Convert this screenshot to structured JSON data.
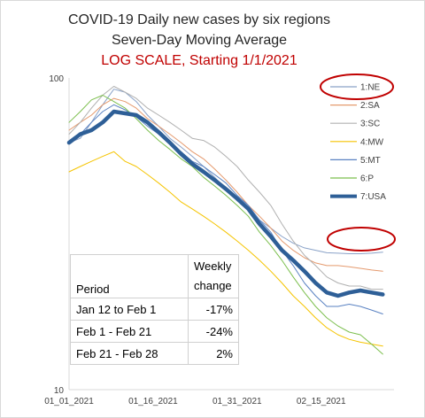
{
  "chart_data": {
    "type": "line",
    "title": "COVID-19 Daily new cases by six regions",
    "subtitle": "Seven-Day Moving Average",
    "subtitle2": "LOG SCALE, Starting 1/1/2021",
    "log_scale": true,
    "ylim": [
      10,
      100
    ],
    "y_ticks": [
      "100",
      "10"
    ],
    "x_ticks": [
      "01_01_2021",
      "01_16_2021",
      "01_31_2021",
      "02_15_2021"
    ],
    "x_tick_days": [
      0,
      15,
      30,
      45
    ],
    "xlim_days": [
      0,
      58
    ],
    "legend_position": "right",
    "colors": {
      "1:NE": "#8aa2c8",
      "2:SA": "#e59a6e",
      "3:SC": "#b0b0b0",
      "4:MW": "#f5c400",
      "5:MT": "#5a82c2",
      "6:P": "#7cbf4e",
      "7:USA": "#2e5f97",
      "highlight": "#c00000"
    },
    "series": [
      {
        "name": "1:NE",
        "color": "#8aa2c8",
        "width": 1,
        "values": [
          [
            0,
            62
          ],
          [
            2,
            64
          ],
          [
            4,
            72
          ],
          [
            6,
            82
          ],
          [
            8,
            92
          ],
          [
            10,
            90
          ],
          [
            12,
            84
          ],
          [
            14,
            76
          ],
          [
            16,
            70
          ],
          [
            18,
            64
          ],
          [
            20,
            60
          ],
          [
            22,
            56
          ],
          [
            24,
            52
          ],
          [
            26,
            48
          ],
          [
            28,
            44
          ],
          [
            30,
            41
          ],
          [
            32,
            38
          ],
          [
            34,
            35
          ],
          [
            36,
            33
          ],
          [
            38,
            31
          ],
          [
            40,
            29.5
          ],
          [
            42,
            28.5
          ],
          [
            44,
            28
          ],
          [
            46,
            27.5
          ],
          [
            48,
            27.4
          ],
          [
            50,
            27.3
          ],
          [
            52,
            27.3
          ],
          [
            54,
            27.4
          ],
          [
            56,
            27.6
          ]
        ]
      },
      {
        "name": "2:SA",
        "color": "#e59a6e",
        "width": 1,
        "values": [
          [
            0,
            68
          ],
          [
            2,
            72
          ],
          [
            4,
            76
          ],
          [
            6,
            82
          ],
          [
            8,
            86
          ],
          [
            10,
            84
          ],
          [
            12,
            80
          ],
          [
            14,
            74
          ],
          [
            16,
            70
          ],
          [
            18,
            66
          ],
          [
            20,
            62
          ],
          [
            22,
            58
          ],
          [
            24,
            55
          ],
          [
            26,
            51
          ],
          [
            28,
            47
          ],
          [
            30,
            43
          ],
          [
            32,
            39
          ],
          [
            34,
            36
          ],
          [
            36,
            33
          ],
          [
            38,
            30
          ],
          [
            40,
            28
          ],
          [
            42,
            26.5
          ],
          [
            44,
            25.5
          ],
          [
            46,
            25
          ],
          [
            48,
            25
          ],
          [
            50,
            24.8
          ],
          [
            52,
            24.5
          ],
          [
            54,
            24.2
          ],
          [
            56,
            24
          ]
        ]
      },
      {
        "name": "3:SC",
        "color": "#b0b0b0",
        "width": 1,
        "values": [
          [
            0,
            66
          ],
          [
            2,
            72
          ],
          [
            4,
            80
          ],
          [
            6,
            88
          ],
          [
            8,
            94
          ],
          [
            10,
            90
          ],
          [
            12,
            86
          ],
          [
            14,
            80
          ],
          [
            16,
            76
          ],
          [
            18,
            72
          ],
          [
            20,
            68
          ],
          [
            22,
            64
          ],
          [
            24,
            63
          ],
          [
            26,
            60
          ],
          [
            28,
            56
          ],
          [
            30,
            52
          ],
          [
            32,
            47
          ],
          [
            34,
            43
          ],
          [
            36,
            39
          ],
          [
            38,
            34
          ],
          [
            40,
            30
          ],
          [
            42,
            27
          ],
          [
            44,
            25
          ],
          [
            46,
            23
          ],
          [
            48,
            22
          ],
          [
            50,
            21.5
          ],
          [
            52,
            21.5
          ],
          [
            54,
            21
          ],
          [
            56,
            21
          ]
        ]
      },
      {
        "name": "4:MW",
        "color": "#f5c400",
        "width": 1,
        "values": [
          [
            0,
            50
          ],
          [
            2,
            52
          ],
          [
            4,
            54
          ],
          [
            6,
            56
          ],
          [
            8,
            58
          ],
          [
            10,
            54
          ],
          [
            12,
            52
          ],
          [
            14,
            49
          ],
          [
            16,
            46
          ],
          [
            18,
            43
          ],
          [
            20,
            40
          ],
          [
            22,
            38
          ],
          [
            24,
            36
          ],
          [
            26,
            34
          ],
          [
            28,
            32
          ],
          [
            30,
            30
          ],
          [
            32,
            28
          ],
          [
            34,
            26
          ],
          [
            36,
            24
          ],
          [
            38,
            22
          ],
          [
            40,
            20
          ],
          [
            42,
            18.5
          ],
          [
            44,
            17
          ],
          [
            46,
            15.8
          ],
          [
            48,
            15
          ],
          [
            50,
            14.5
          ],
          [
            52,
            14.2
          ],
          [
            54,
            14
          ],
          [
            56,
            13.8
          ]
        ]
      },
      {
        "name": "5:MT",
        "color": "#5a82c2",
        "width": 1,
        "values": [
          [
            0,
            62
          ],
          [
            2,
            66
          ],
          [
            4,
            72
          ],
          [
            6,
            78
          ],
          [
            8,
            82
          ],
          [
            10,
            79
          ],
          [
            12,
            75
          ],
          [
            14,
            70
          ],
          [
            16,
            66
          ],
          [
            18,
            62
          ],
          [
            20,
            58
          ],
          [
            22,
            54
          ],
          [
            24,
            52
          ],
          [
            26,
            49
          ],
          [
            28,
            46
          ],
          [
            30,
            42
          ],
          [
            32,
            39
          ],
          [
            34,
            35
          ],
          [
            36,
            32
          ],
          [
            38,
            28
          ],
          [
            40,
            25
          ],
          [
            42,
            22
          ],
          [
            44,
            20
          ],
          [
            46,
            18.5
          ],
          [
            48,
            18.5
          ],
          [
            50,
            18.8
          ],
          [
            52,
            18.5
          ],
          [
            54,
            18
          ],
          [
            56,
            17.5
          ]
        ]
      },
      {
        "name": "6:P",
        "color": "#7cbf4e",
        "width": 1,
        "values": [
          [
            0,
            72
          ],
          [
            2,
            78
          ],
          [
            4,
            85
          ],
          [
            6,
            88
          ],
          [
            8,
            84
          ],
          [
            10,
            80
          ],
          [
            12,
            74
          ],
          [
            14,
            68
          ],
          [
            16,
            63
          ],
          [
            18,
            59
          ],
          [
            20,
            55
          ],
          [
            22,
            52
          ],
          [
            24,
            48
          ],
          [
            26,
            45
          ],
          [
            28,
            42
          ],
          [
            30,
            39
          ],
          [
            32,
            36
          ],
          [
            34,
            32
          ],
          [
            36,
            29
          ],
          [
            38,
            26
          ],
          [
            40,
            23
          ],
          [
            42,
            20.5
          ],
          [
            44,
            18.5
          ],
          [
            46,
            17
          ],
          [
            48,
            16
          ],
          [
            50,
            15.3
          ],
          [
            52,
            15
          ],
          [
            54,
            14
          ],
          [
            56,
            13
          ]
        ]
      },
      {
        "name": "7:USA",
        "color": "#2e5f97",
        "width": 4.5,
        "values": [
          [
            0,
            62
          ],
          [
            2,
            66
          ],
          [
            4,
            68
          ],
          [
            6,
            72
          ],
          [
            8,
            78
          ],
          [
            10,
            77
          ],
          [
            12,
            76
          ],
          [
            14,
            72
          ],
          [
            16,
            67
          ],
          [
            18,
            62
          ],
          [
            20,
            57
          ],
          [
            22,
            53
          ],
          [
            24,
            50
          ],
          [
            26,
            47
          ],
          [
            28,
            44
          ],
          [
            30,
            41
          ],
          [
            32,
            38
          ],
          [
            34,
            34
          ],
          [
            36,
            31
          ],
          [
            38,
            28
          ],
          [
            40,
            26
          ],
          [
            42,
            24
          ],
          [
            44,
            22
          ],
          [
            46,
            20.5
          ],
          [
            48,
            20
          ],
          [
            50,
            20.5
          ],
          [
            52,
            20.8
          ],
          [
            54,
            20.5
          ],
          [
            56,
            20.2
          ]
        ]
      }
    ],
    "table": {
      "header_col1": "Period",
      "header_col2_line1": "Weekly",
      "header_col2_line2": "change",
      "rows": [
        {
          "period": "Jan 12 to Feb 1",
          "change": "-17%"
        },
        {
          "period": "Feb 1 - Feb 21",
          "change": "-24%"
        },
        {
          "period": "Feb 21 - Feb 28",
          "change": "2%"
        }
      ]
    }
  }
}
